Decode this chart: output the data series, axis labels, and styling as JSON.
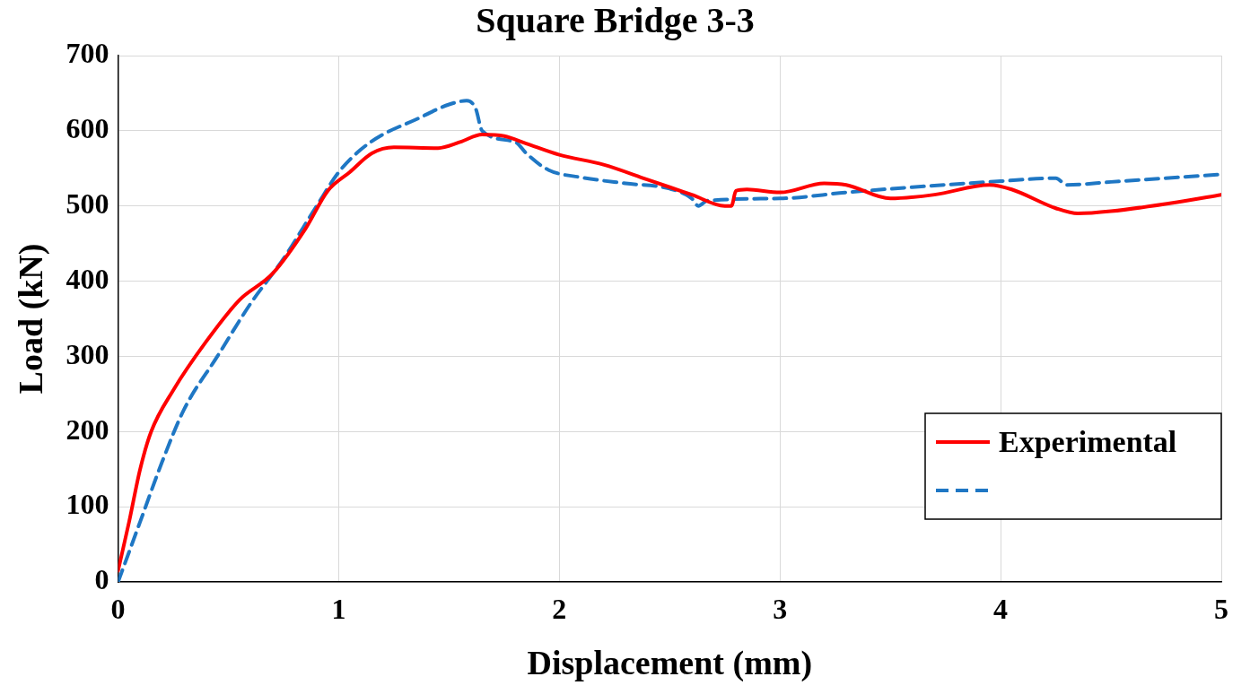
{
  "chart_data": {
    "type": "line",
    "title": "Square Bridge 3-3",
    "xlabel": "Displacement (mm)",
    "ylabel": "Load (kN)",
    "xlim": [
      0,
      5
    ],
    "xticks": [
      0,
      1,
      2,
      3,
      4,
      5
    ],
    "ylim": [
      0,
      700
    ],
    "yticks": [
      0,
      100,
      200,
      300,
      400,
      500,
      600,
      700
    ],
    "grid": true,
    "legend": "bottom right",
    "marker": "none",
    "series": [
      {
        "name": "Experimental",
        "color": "#ff0000",
        "line_style": "solid",
        "x": [
          0,
          0.05,
          0.1,
          0.15,
          0.25,
          0.4,
          0.55,
          0.7,
          0.85,
          0.95,
          1.05,
          1.15,
          1.25,
          1.45,
          1.55,
          1.65,
          1.75,
          1.85,
          2.0,
          2.2,
          2.4,
          2.6,
          2.75,
          2.78,
          2.8,
          2.85,
          3.0,
          3.2,
          3.3,
          3.5,
          3.7,
          3.95,
          4.05,
          4.25,
          4.35,
          4.5,
          4.8,
          5.0
        ],
        "values": [
          15,
          80,
          150,
          200,
          255,
          320,
          375,
          410,
          470,
          520,
          545,
          570,
          578,
          577,
          585,
          595,
          593,
          583,
          568,
          555,
          535,
          515,
          500,
          500,
          520,
          522,
          518,
          530,
          528,
          510,
          515,
          528,
          522,
          497,
          490,
          493,
          505,
          515
        ]
      },
      {
        "color": "#1f77c4",
        "line_style": "dashed",
        "x": [
          0,
          0.1,
          0.2,
          0.3,
          0.45,
          0.6,
          0.75,
          0.9,
          1.0,
          1.1,
          1.2,
          1.35,
          1.5,
          1.58,
          1.62,
          1.65,
          1.8,
          1.85,
          1.95,
          2.1,
          2.3,
          2.5,
          2.6,
          2.63,
          2.67,
          3.0,
          3.3,
          3.6,
          4.0,
          4.25,
          4.3,
          4.5,
          5.0
        ],
        "values": [
          0,
          80,
          160,
          230,
          300,
          370,
          430,
          500,
          545,
          575,
          595,
          615,
          635,
          640,
          630,
          600,
          585,
          570,
          548,
          538,
          530,
          523,
          510,
          500,
          507,
          510,
          518,
          525,
          533,
          537,
          528,
          532,
          542
        ]
      }
    ]
  }
}
